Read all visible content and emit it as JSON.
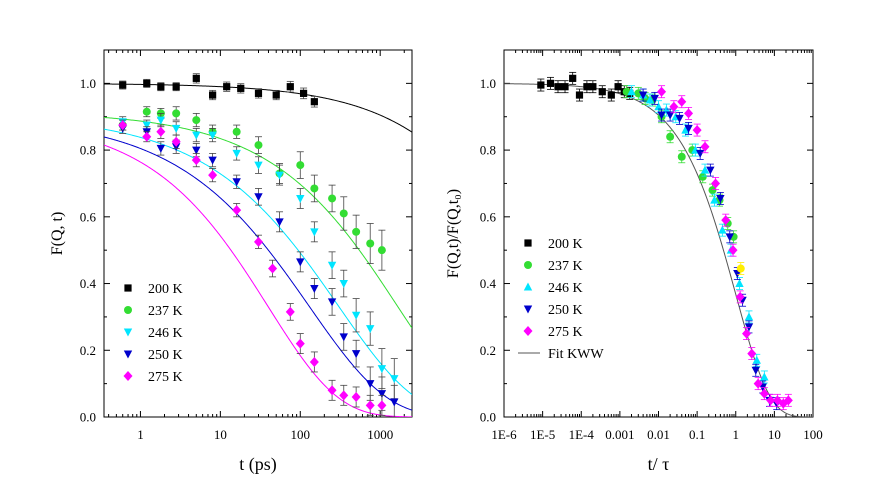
{
  "chart_data": [
    {
      "type": "scatter",
      "xscale": "log",
      "xlabel": "t (ps)",
      "ylabel": "F(Q, t)",
      "xlim": [
        0.35,
        2500
      ],
      "ylim": [
        0.0,
        1.1
      ],
      "xticks": [
        1,
        10,
        100,
        1000
      ],
      "xtick_labels": [
        "1",
        "10",
        "100",
        "1000"
      ],
      "yticks": [
        0.0,
        0.2,
        0.4,
        0.6,
        0.8,
        1.0
      ],
      "ytick_labels": [
        "0.0",
        "0.2",
        "0.4",
        "0.6",
        "0.8",
        "1.0"
      ],
      "legend_position": "bottom-left",
      "series": [
        {
          "name": "200 K",
          "color": "#000000",
          "marker": "square",
          "x": [
            0.6,
            1.2,
            1.8,
            2.8,
            5,
            8,
            12,
            18,
            30,
            50,
            75,
            110,
            150
          ],
          "y": [
            0.995,
            1.0,
            0.99,
            0.99,
            1.015,
            0.965,
            0.99,
            0.985,
            0.97,
            0.965,
            0.99,
            0.97,
            0.945
          ],
          "err": [
            0.012,
            0.012,
            0.012,
            0.012,
            0.014,
            0.014,
            0.014,
            0.014,
            0.014,
            0.014,
            0.016,
            0.016,
            0.016
          ],
          "fit": {
            "y0": 1.0,
            "tau": 100000.0,
            "beta": 0.5
          }
        },
        {
          "name": "237 K",
          "color": "#33dd33",
          "marker": "circle",
          "x": [
            0.6,
            1.2,
            1.8,
            2.8,
            5,
            8,
            16,
            30,
            55,
            100,
            150,
            250,
            350,
            500,
            750,
            1050
          ],
          "y": [
            0.875,
            0.915,
            0.91,
            0.91,
            0.89,
            0.855,
            0.855,
            0.815,
            0.73,
            0.755,
            0.685,
            0.655,
            0.61,
            0.555,
            0.52,
            0.5
          ],
          "err": [
            0.015,
            0.015,
            0.015,
            0.02,
            0.02,
            0.02,
            0.02,
            0.025,
            0.03,
            0.04,
            0.04,
            0.04,
            0.05,
            0.05,
            0.06,
            0.06
          ],
          "fit": {
            "y0": 0.915,
            "tau": 1600,
            "beta": 0.47
          }
        },
        {
          "name": "246 K",
          "color": "#00e5ff",
          "marker": "triangle-down",
          "x": [
            0.6,
            1.2,
            1.8,
            2.8,
            5,
            8,
            16,
            30,
            55,
            100,
            150,
            250,
            350,
            500,
            750,
            1050,
            1500
          ],
          "y": [
            0.885,
            0.875,
            0.89,
            0.865,
            0.845,
            0.845,
            0.79,
            0.755,
            0.725,
            0.655,
            0.555,
            0.455,
            0.4,
            0.305,
            0.265,
            0.145,
            0.115
          ],
          "err": [
            0.015,
            0.015,
            0.02,
            0.02,
            0.02,
            0.02,
            0.02,
            0.025,
            0.03,
            0.03,
            0.03,
            0.04,
            0.04,
            0.05,
            0.05,
            0.06,
            0.06
          ],
          "fit": {
            "y0": 0.905,
            "tau": 300,
            "beta": 0.45
          }
        },
        {
          "name": "250 K",
          "color": "#0000cc",
          "marker": "triangle-down",
          "x": [
            0.6,
            1.2,
            1.8,
            2.8,
            5,
            8,
            16,
            30,
            55,
            100,
            150,
            250,
            350,
            500,
            750,
            1050,
            1500
          ],
          "y": [
            0.865,
            0.855,
            0.805,
            0.81,
            0.8,
            0.77,
            0.705,
            0.66,
            0.585,
            0.465,
            0.385,
            0.345,
            0.24,
            0.19,
            0.1,
            0.07,
            0.045
          ],
          "err": [
            0.015,
            0.015,
            0.02,
            0.02,
            0.02,
            0.02,
            0.02,
            0.025,
            0.03,
            0.03,
            0.03,
            0.04,
            0.04,
            0.04,
            0.05,
            0.05,
            0.05
          ],
          "fit": {
            "y0": 0.9,
            "tau": 130,
            "beta": 0.45
          }
        },
        {
          "name": "275 K",
          "color": "#ff00ff",
          "marker": "diamond",
          "x": [
            0.6,
            1.2,
            1.8,
            2.8,
            5,
            8,
            16,
            30,
            45,
            75,
            100,
            150,
            250,
            350,
            500,
            750,
            1050
          ],
          "y": [
            0.875,
            0.84,
            0.855,
            0.825,
            0.77,
            0.725,
            0.62,
            0.525,
            0.445,
            0.315,
            0.22,
            0.165,
            0.08,
            0.065,
            0.06,
            0.035,
            0.035
          ],
          "err": [
            0.015,
            0.015,
            0.02,
            0.02,
            0.02,
            0.02,
            0.02,
            0.02,
            0.025,
            0.025,
            0.03,
            0.03,
            0.03,
            0.03,
            0.03,
            0.03,
            0.03
          ],
          "fit": {
            "y0": 0.895,
            "tau": 40,
            "beta": 0.5
          }
        }
      ]
    },
    {
      "type": "scatter",
      "xscale": "log",
      "xlabel": "t/ τ",
      "ylabel": "F(Q,t)/F(Q,t₀)",
      "xlim": [
        1e-06,
        100
      ],
      "ylim": [
        0.0,
        1.1
      ],
      "xticks": [
        1e-06,
        1e-05,
        0.0001,
        0.001,
        0.01,
        0.1,
        1,
        10,
        100
      ],
      "xtick_labels": [
        "1E-6",
        "1E-5",
        "1E-4",
        "0.001",
        "0.01",
        "0.1",
        "1",
        "10",
        "100"
      ],
      "yticks": [
        0.0,
        0.2,
        0.4,
        0.6,
        0.8,
        1.0
      ],
      "ytick_labels": [
        "0.0",
        "0.2",
        "0.4",
        "0.6",
        "0.8",
        "1.0"
      ],
      "legend_position": "bottom-left",
      "fit_label": "Fit KWW",
      "fit": {
        "y0": 1.0,
        "tau": 1.0,
        "beta": 0.5
      },
      "series": [
        {
          "name": "200 K",
          "color": "#000000",
          "marker": "square",
          "x": [
            9e-06,
            1.6e-05,
            2.5e-05,
            3.8e-05,
            6e-05,
            9e-05,
            0.00014,
            0.0002,
            0.00035,
            0.0006,
            0.0009,
            0.0013,
            0.0018
          ],
          "y": [
            0.995,
            1.0,
            0.99,
            0.99,
            1.015,
            0.965,
            0.99,
            0.99,
            0.975,
            0.965,
            0.99,
            0.975,
            0.97
          ]
        },
        {
          "name": "237 K",
          "color": "#33dd33",
          "marker": "circle",
          "x": [
            0.0015,
            0.003,
            0.0045,
            0.007,
            0.012,
            0.02,
            0.04,
            0.075,
            0.14,
            0.25,
            0.38,
            0.62,
            0.88
          ],
          "y": [
            0.975,
            0.97,
            0.955,
            0.95,
            0.9,
            0.84,
            0.78,
            0.8,
            0.72,
            0.68,
            0.65,
            0.58,
            0.54
          ]
        },
        {
          "name": "246 K",
          "color": "#00e5ff",
          "marker": "triangle-up",
          "x": [
            0.002,
            0.004,
            0.006,
            0.01,
            0.016,
            0.028,
            0.05,
            0.09,
            0.16,
            0.28,
            0.45,
            0.75,
            1.25,
            2.2,
            3.5,
            5.5
          ],
          "y": [
            0.975,
            0.965,
            0.95,
            0.93,
            0.92,
            0.9,
            0.86,
            0.8,
            0.74,
            0.65,
            0.56,
            0.5,
            0.4,
            0.3,
            0.17,
            0.12
          ]
        },
        {
          "name": "250 K",
          "color": "#0000cc",
          "marker": "triangle-down",
          "x": [
            0.004,
            0.008,
            0.012,
            0.02,
            0.035,
            0.06,
            0.12,
            0.22,
            0.4,
            0.7,
            1.1,
            1.5,
            2.2,
            3.3,
            5,
            7.5,
            11.5
          ],
          "y": [
            0.965,
            0.955,
            0.905,
            0.905,
            0.895,
            0.865,
            0.79,
            0.74,
            0.655,
            0.54,
            0.43,
            0.35,
            0.27,
            0.14,
            0.09,
            0.05,
            0.04
          ]
        },
        {
          "name": "275 K",
          "color": "#ff00ff",
          "marker": "diamond",
          "x": [
            0.012,
            0.025,
            0.04,
            0.06,
            0.1,
            0.16,
            0.3,
            0.55,
            0.85,
            1.3,
            1.9,
            2.6,
            3.8,
            5.5,
            8,
            12,
            17,
            23
          ],
          "y": [
            0.975,
            0.93,
            0.945,
            0.91,
            0.86,
            0.81,
            0.7,
            0.59,
            0.5,
            0.36,
            0.25,
            0.19,
            0.1,
            0.07,
            0.05,
            0.05,
            0.04,
            0.05
          ]
        },
        {
          "name": "yellow-point",
          "color": "#ffee00",
          "marker": "circle",
          "in_legend": false,
          "x": [
            1.35
          ],
          "y": [
            0.445
          ]
        }
      ]
    }
  ]
}
